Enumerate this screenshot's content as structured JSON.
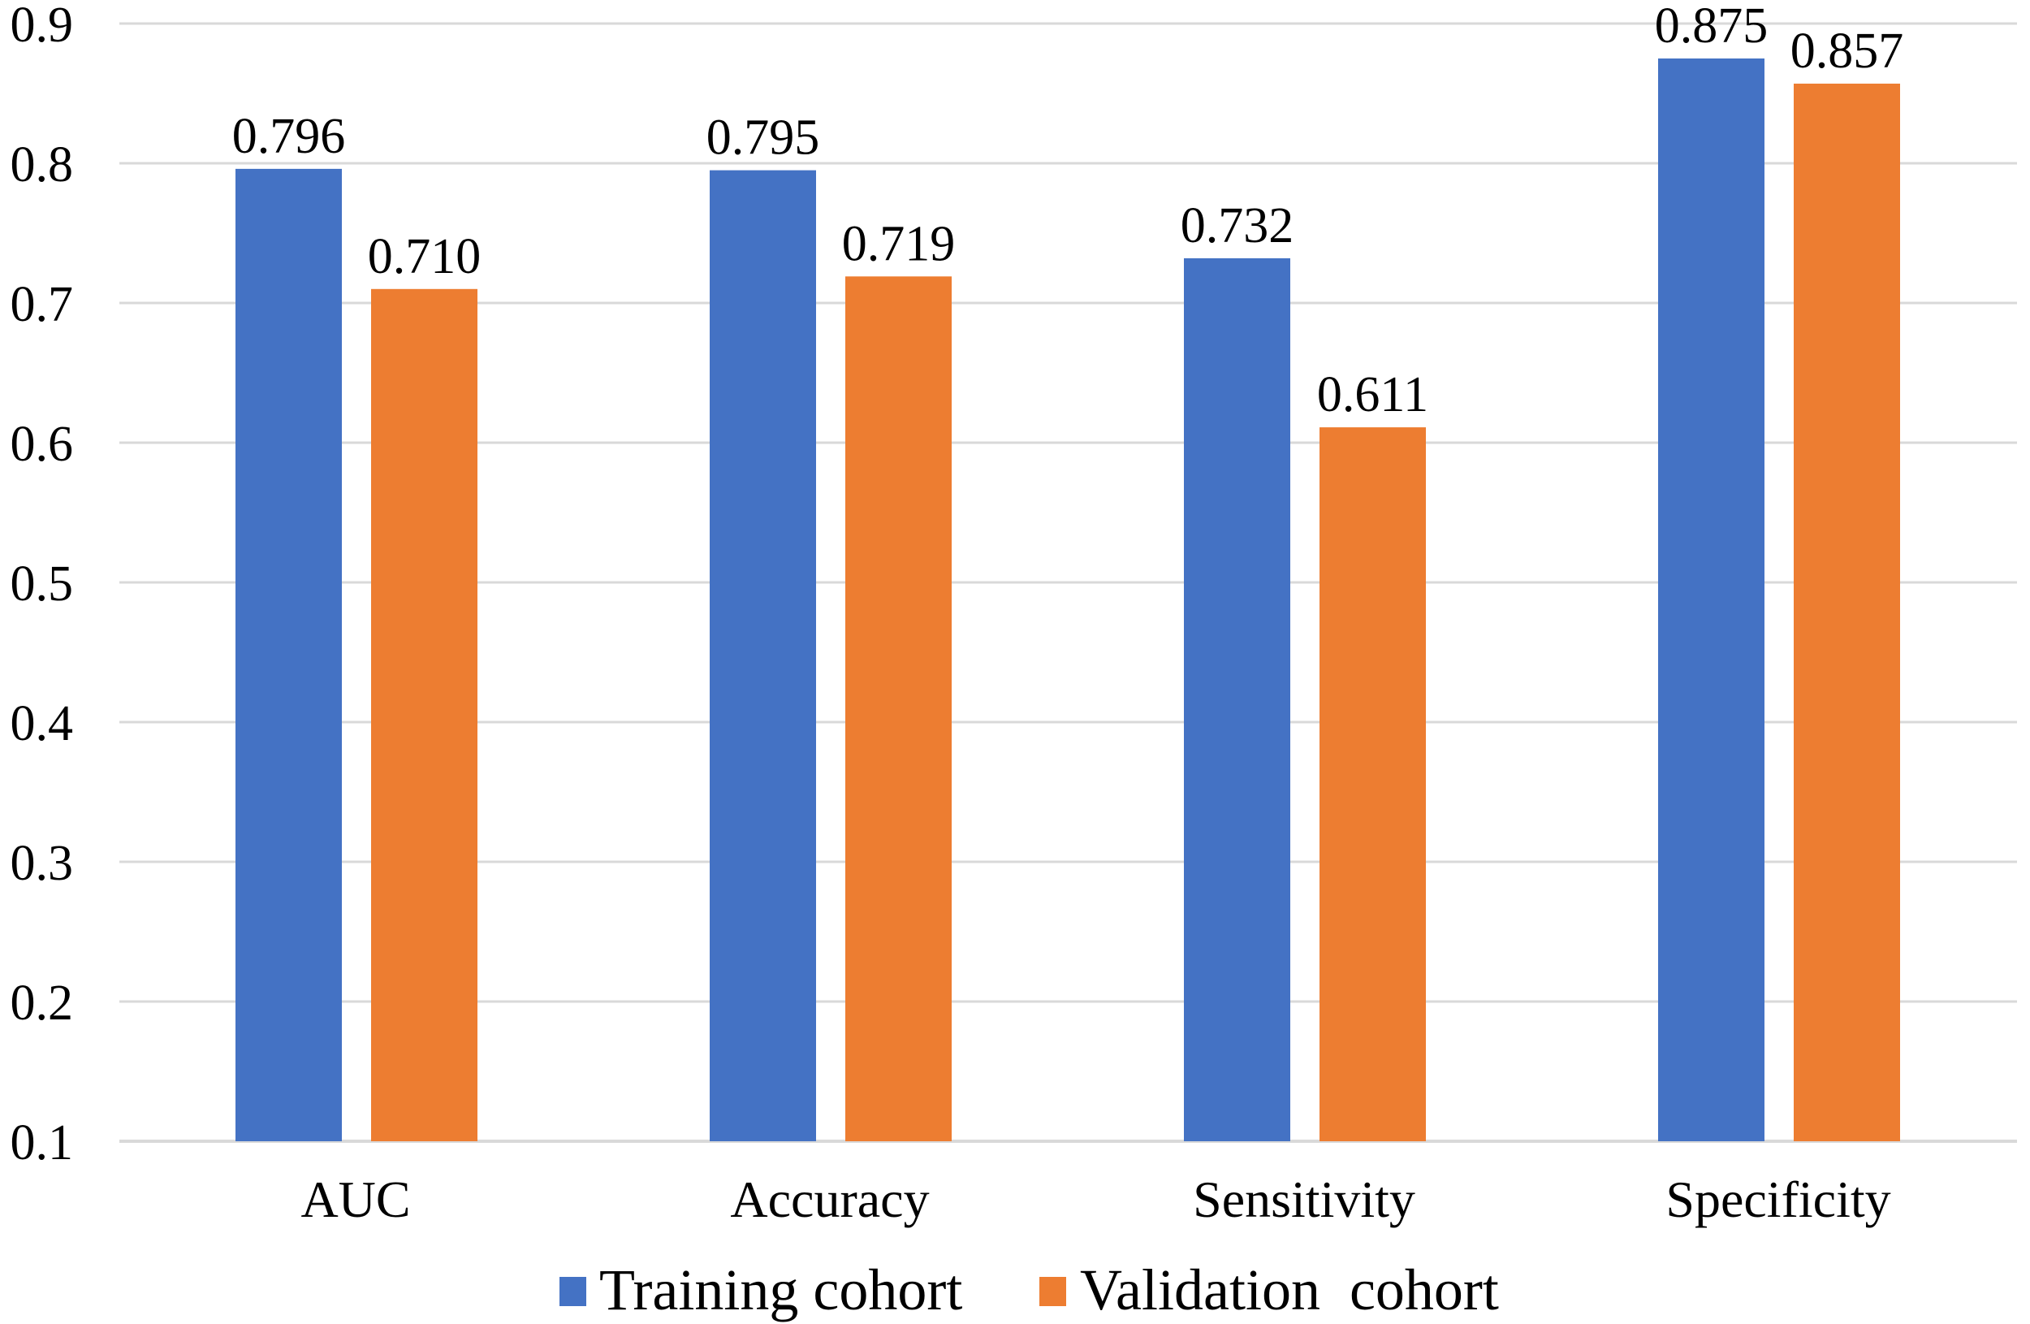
{
  "chart_data": {
    "type": "bar",
    "title": "",
    "xlabel": "",
    "ylabel": "",
    "categories": [
      "AUC",
      "Accuracy",
      "Sensitivity",
      "Specificity"
    ],
    "series": [
      {
        "name": "Training cohort",
        "color": "#4472C4",
        "values": [
          0.796,
          0.795,
          0.732,
          0.875
        ],
        "labels": [
          "0.796",
          "0.795",
          "0.732",
          "0.875"
        ]
      },
      {
        "name": "Validation  cohort",
        "color": "#ED7D31",
        "values": [
          0.71,
          0.719,
          0.611,
          0.857
        ],
        "labels": [
          "0.710",
          "0.719",
          "0.611",
          "0.857"
        ]
      }
    ],
    "ylim": [
      0.1,
      0.9
    ],
    "yticks": [
      "0.1",
      "0.2",
      "0.3",
      "0.4",
      "0.5",
      "0.6",
      "0.7",
      "0.8",
      "0.9"
    ],
    "grid": true,
    "gridColor": "#D9D9D9",
    "legend_position": "bottom-center"
  }
}
